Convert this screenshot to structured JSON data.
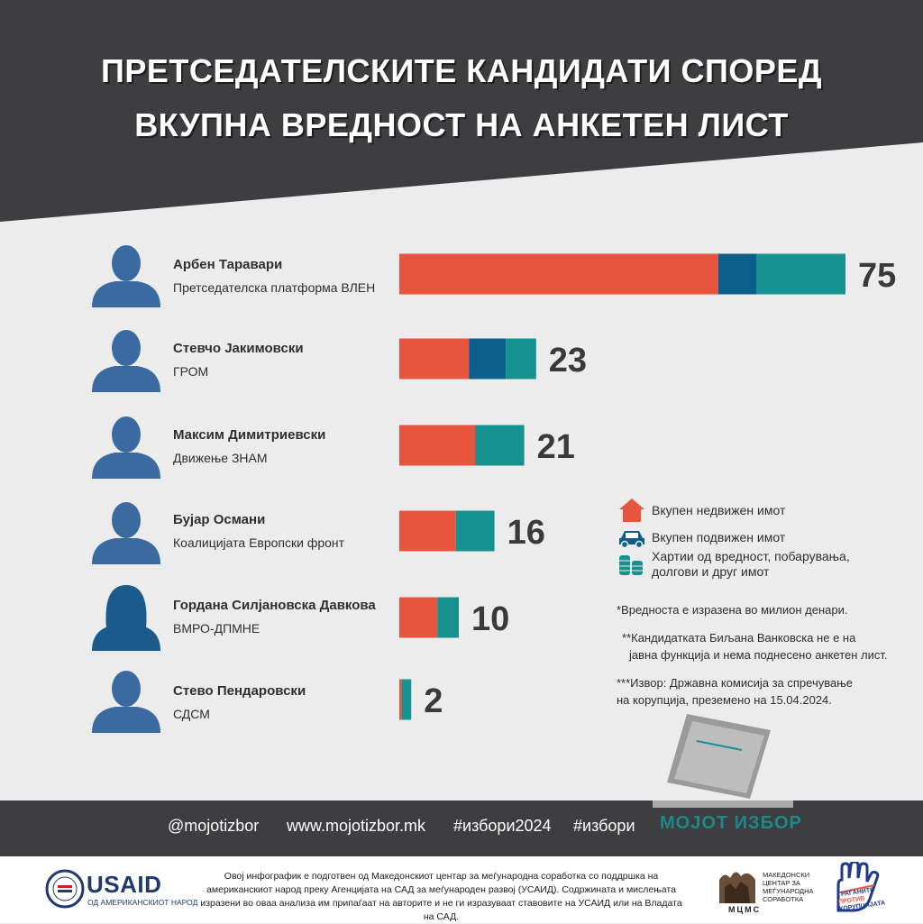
{
  "title_lines": [
    "ПРЕТСЕДАТЕЛСКИТЕ КАНДИДАТИ СПОРЕД",
    "ВКУПНА  ВРЕДНОСТ  НА  АНКЕТЕН ЛИСТ"
  ],
  "colors": {
    "real_estate": "#e8553f",
    "vehicles": "#0b5f8a",
    "securities": "#16918f",
    "dark_bg": "#3e3e40",
    "avatar_male": "#3a6aa0",
    "avatar_female": "#1b5a8a"
  },
  "candidates": [
    {
      "name": "Арбен Таравари",
      "party": "Претседателска платформа ВЛЕН",
      "avatar": "male-avatar-icon"
    },
    {
      "name": "Стевчо Јакимовски",
      "party": "ГРОМ",
      "avatar": "male-avatar-icon"
    },
    {
      "name": "Максим Димитриевски",
      "party": "Движење ЗНАМ",
      "avatar": "male-avatar-icon"
    },
    {
      "name": "Бујар Османи",
      "party": "Коалицијата Европски фронт",
      "avatar": "male-avatar-icon"
    },
    {
      "name": "Гордана Силјановска Давкова",
      "party": "ВМРО-ДПМНЕ",
      "avatar": "female-avatar-icon"
    },
    {
      "name": "Стево Пендаровски",
      "party": "СДСМ",
      "avatar": "male-avatar-icon"
    }
  ],
  "chart_data": {
    "type": "bar",
    "orientation": "horizontal",
    "stacked": true,
    "categories": [
      "Арбен Таравари",
      "Стевчо Јакимовски",
      "Максим Димитриевски",
      "Бујар Османи",
      "Гордана Силјановска Давкова",
      "Стево Пендаровски"
    ],
    "totals": [
      "75",
      "23",
      "21",
      "16",
      "10",
      "2"
    ],
    "total_values": [
      75,
      23,
      21,
      16,
      10,
      2
    ],
    "series": [
      {
        "name": "Вкупен недвижен имот",
        "values": [
          53.6,
          11.7,
          12.8,
          9.5,
          6.4,
          0.4
        ]
      },
      {
        "name": "Вкупен подвижен имот",
        "values": [
          6.4,
          6.2,
          0.0,
          0.0,
          0.0,
          0.0
        ]
      },
      {
        "name": "Хартии од вредност, побарувања, долгови и друг имот",
        "values": [
          15.0,
          5.1,
          8.2,
          6.5,
          3.6,
          1.6
        ]
      }
    ],
    "grid": false,
    "legend_position": "right"
  },
  "legend": [
    {
      "label": "Вкупен недвижен имот",
      "icon": "house-icon"
    },
    {
      "label": "Вкупен подвижен имот",
      "icon": "car-icon"
    },
    {
      "label_lines": [
        "Хартии од вредност, побарувања,",
        "долгови и друг имот"
      ],
      "icon": "coins-icon"
    }
  ],
  "notes": {
    "n1": "*Вредноста е изразена во милион денари.",
    "n2_lines": [
      "**Кандидатката Биљана Ванковска не е на",
      "јавна функција и нема поднесено анкетен лист."
    ],
    "n3_lines": [
      "***Извор: Државна комисија за спречување",
      "на корупција, преземено на 15.04.2024."
    ]
  },
  "footer": {
    "handle": "@mojotizbor",
    "website": "www.mojotizbor.mk",
    "hashtag1": "#избори2024",
    "hashtag2": "#избори",
    "brand": "МОЈОТ ИЗБОР"
  },
  "bottom": {
    "usaid": "USAID",
    "usaid_sub": "ОД АМЕРИКАНСКИОТ НАРОД",
    "disclaimer": "Овој инфографик е подготвен од Македонскиот центар за меѓународна соработка со поддршка на американскиот народ преку Агенцијата на САД за меѓународен развој (УСАИД).  Содржината и мислењата изразени во оваа анализа  им припаѓаат на авторите и не ги изразуваат ставовите на УСАИД или на Владата на САД.",
    "mcms_lines": [
      "МАКЕДОНСКИ",
      "ЦЕНТАР ЗА",
      "МЕЃУНАРОДНА",
      "СОРАБОТКА"
    ],
    "mcms_letters": "МЦМС",
    "hand_lines": [
      "ГРАЃАНИТЕ",
      "ПРОТИВ",
      "КОРУПЦИЈАТА"
    ]
  }
}
